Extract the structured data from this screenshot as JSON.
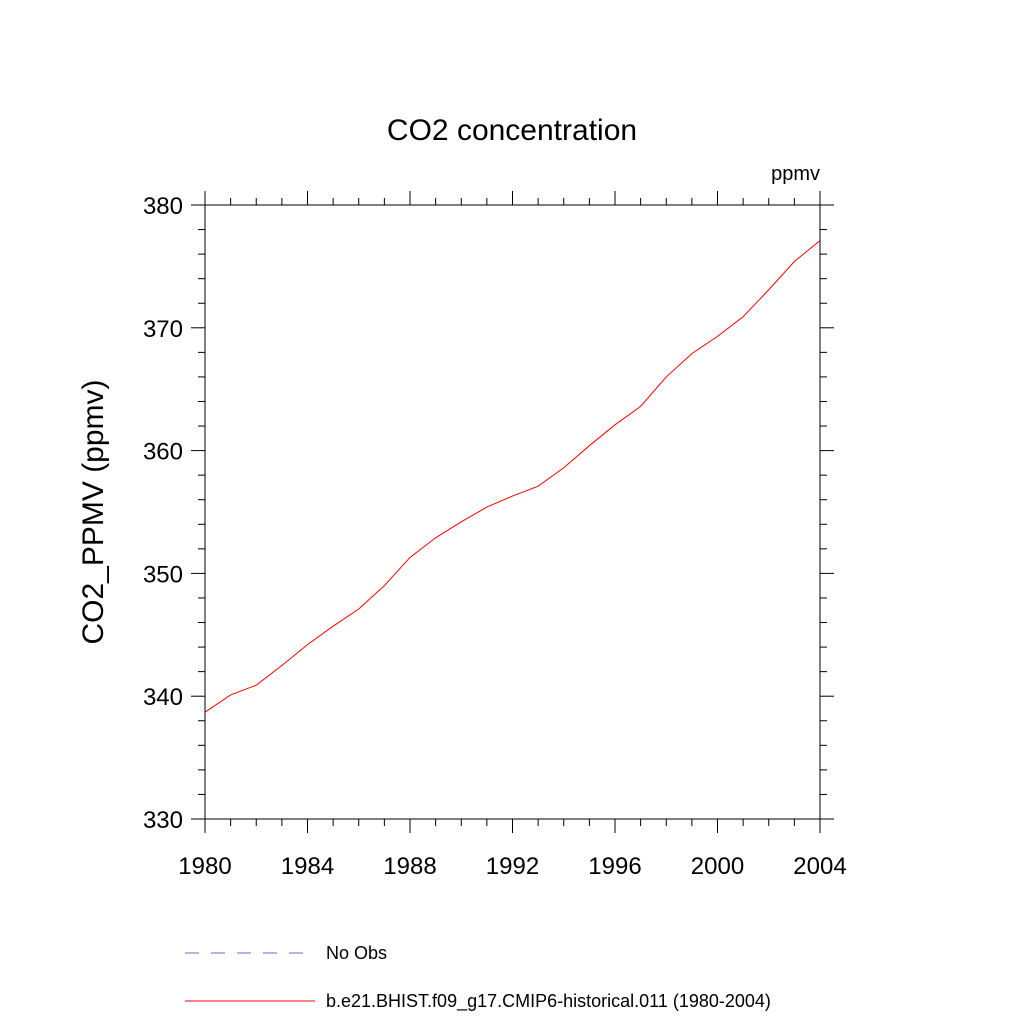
{
  "chart_data": {
    "type": "line",
    "title": "CO2 concentration",
    "units": "ppmv",
    "ylabel": "CO2_PPMV  (ppmv)",
    "xlabel": "",
    "xlim": [
      1980,
      2004
    ],
    "ylim": [
      330,
      380
    ],
    "xticks": [
      1980,
      1984,
      1988,
      1992,
      1996,
      2000,
      2004
    ],
    "yticks": [
      330,
      340,
      350,
      360,
      370,
      380
    ],
    "grid": false,
    "legend_position": "bottom",
    "series": [
      {
        "name": "No Obs",
        "style": "dashed",
        "color": "#6a6ac8",
        "x": [],
        "y": []
      },
      {
        "name": "b.e21.BHIST.f09_g17.CMIP6-historical.011 (1980-2004)",
        "style": "solid",
        "color": "#ff0000",
        "x": [
          1980,
          1981,
          1982,
          1983,
          1984,
          1985,
          1986,
          1987,
          1988,
          1989,
          1990,
          1991,
          1992,
          1993,
          1994,
          1995,
          1996,
          1997,
          1998,
          1999,
          2000,
          2001,
          2002,
          2003,
          2004
        ],
        "y": [
          338.7,
          340.1,
          340.9,
          342.5,
          344.2,
          345.7,
          347.1,
          349.0,
          351.3,
          352.9,
          354.2,
          355.4,
          356.3,
          357.1,
          358.6,
          360.4,
          362.1,
          363.6,
          366.0,
          367.9,
          369.3,
          370.9,
          373.1,
          375.4,
          377.1
        ]
      }
    ]
  }
}
